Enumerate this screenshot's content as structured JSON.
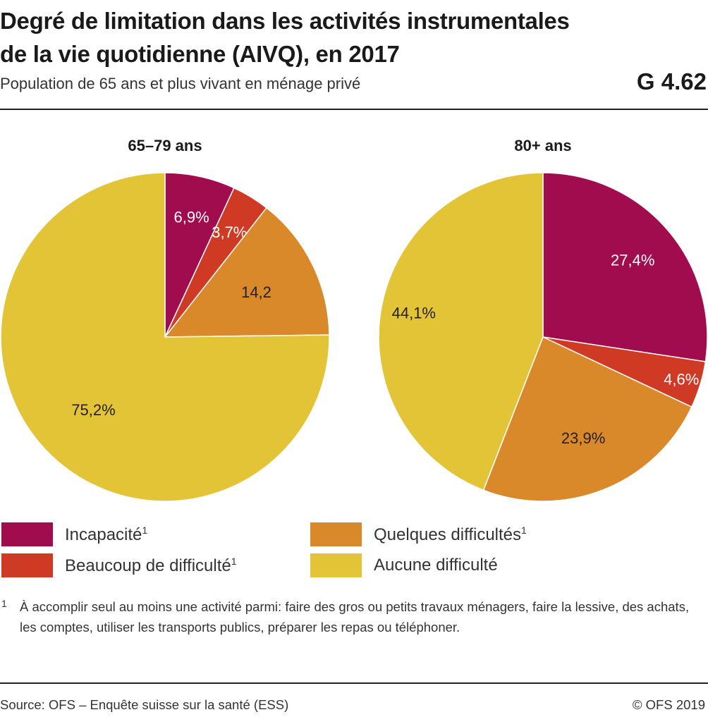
{
  "header": {
    "title_line1": "Degré de limitation dans les activités instrumentales",
    "title_line2": "de la vie quotidienne (AIVQ), en 2017",
    "subtitle": "Population de 65 ans et plus vivant en ménage privé",
    "graph_number": "G 4.62"
  },
  "chart_data": [
    {
      "type": "pie",
      "title": "65–79 ans",
      "categories": [
        "Incapacité",
        "Beaucoup de difficulté",
        "Quelques difficultés",
        "Aucune difficulté"
      ],
      "values": [
        6.9,
        3.7,
        14.2,
        75.2
      ],
      "data_labels": [
        "6,9%",
        "3,7%",
        "14,2",
        "75,2%"
      ],
      "colors": [
        "#a00c4e",
        "#cf3a24",
        "#d9882a",
        "#e3c437"
      ]
    },
    {
      "type": "pie",
      "title": "80+ ans",
      "categories": [
        "Incapacité",
        "Beaucoup de difficulté",
        "Quelques difficultés",
        "Aucune difficulté"
      ],
      "values": [
        27.4,
        4.6,
        23.9,
        44.1
      ],
      "data_labels": [
        "27,4%",
        "4,6%",
        "23,9%",
        "44,1%"
      ],
      "colors": [
        "#a00c4e",
        "#cf3a24",
        "#d9882a",
        "#e3c437"
      ]
    }
  ],
  "legend": {
    "items": [
      {
        "label": "Incapacité",
        "sup": "1",
        "color": "#a00c4e"
      },
      {
        "label": "Beaucoup de difficulté",
        "sup": "1",
        "color": "#cf3a24"
      },
      {
        "label": "Quelques difficultés",
        "sup": "1",
        "color": "#d9882a"
      },
      {
        "label": "Aucune difficulté",
        "sup": "",
        "color": "#e3c437"
      }
    ]
  },
  "footnote": {
    "mark": "1",
    "text": "À accomplir seul au moins une activité parmi: faire des gros ou petits travaux ménagers, faire la lessive, des achats, les comptes, utiliser les transports publics, préparer les repas ou téléphoner."
  },
  "footer": {
    "source": "Source: OFS – Enquête suisse sur la santé (ESS)",
    "copyright": "© OFS 2019"
  }
}
